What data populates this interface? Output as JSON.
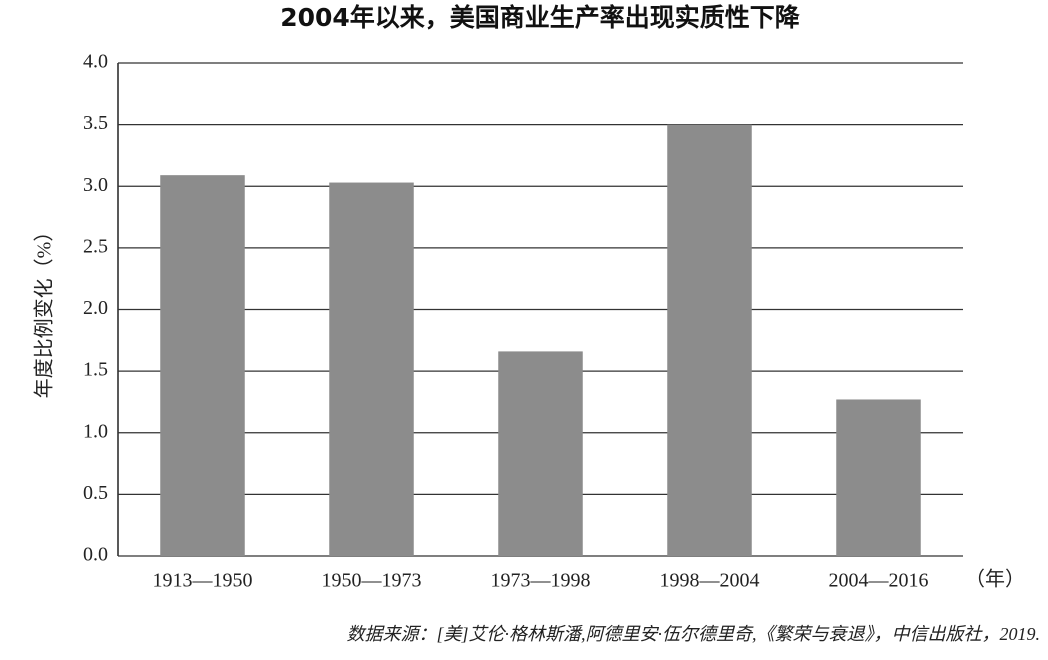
{
  "chart_data": {
    "type": "bar",
    "title": "2004年以来，美国商业生产率出现实质性下降",
    "y_label": "年度比例变化（%）",
    "x_unit": "（年）",
    "source": "数据来源：[美]艾伦·格林斯潘,阿德里安·伍尔德里奇,《繁荣与衰退》，中信出版社，2019.",
    "categories": [
      "1913—1950",
      "1950—1973",
      "1973—1998",
      "1998—2004",
      "2004—2016"
    ],
    "values": [
      3.09,
      3.03,
      1.66,
      3.5,
      1.27
    ],
    "color": "#8c8c8c",
    "ylim": [
      0,
      4
    ],
    "yticks": [
      {
        "value": 0,
        "label": "0.0"
      },
      0.5,
      {
        "value": 1,
        "label": "1.0"
      },
      1.5,
      {
        "value": 2,
        "label": "2.0"
      },
      2.5,
      {
        "value": 3,
        "label": "3.0"
      },
      3.5,
      {
        "value": 4,
        "label": "4.0"
      }
    ],
    "grid": true
  }
}
